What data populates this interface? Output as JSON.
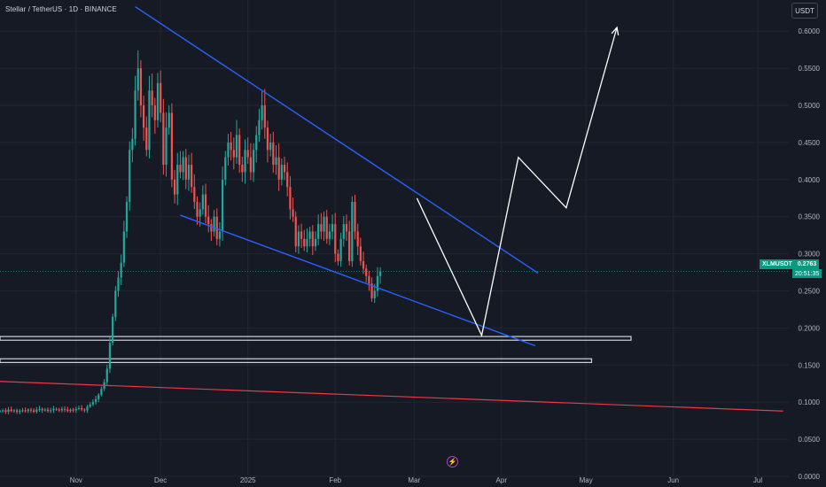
{
  "header": {
    "title": "Stellar / TetherUS · 1D · BINANCE",
    "currency_button": "USDT"
  },
  "price_badge": {
    "symbol": "XLMUSDT",
    "price": "0.2763",
    "countdown": "20:51:35"
  },
  "colors": {
    "background": "#161a25",
    "up": "#26a69a",
    "down": "#ef5350",
    "trendline": "#2962ff",
    "zone": "#d1d4dc",
    "support": "#f23645",
    "projection": "#ffffff",
    "grid": "#232632",
    "axis_text": "#b2b5be",
    "current_price_line": "#089981"
  },
  "icons": {
    "flash": "lightning-icon"
  },
  "chart_data": {
    "type": "candlestick",
    "title": "Stellar / TetherUS · 1D · BINANCE",
    "y_axis": {
      "ticks": [
        "0.6000",
        "0.5500",
        "0.5000",
        "0.4500",
        "0.4000",
        "0.3500",
        "0.3000",
        "0.2500",
        "0.2000",
        "0.1500",
        "0.1000",
        "0.0500",
        "0.0000"
      ],
      "ylim": [
        0,
        0.6324
      ]
    },
    "x_axis": {
      "ticks": [
        "Nov",
        "Dec",
        "2025",
        "Feb",
        "Mar",
        "Apr",
        "May",
        "Jun",
        "Jul"
      ],
      "tick_dates": [
        "2024-11-01",
        "2024-12-01",
        "2025-01-01",
        "2025-02-01",
        "2025-03-01",
        "2025-04-01",
        "2025-05-01",
        "2025-06-01",
        "2025-07-01"
      ],
      "xlim": [
        "2024-10-05",
        "2025-07-12"
      ]
    },
    "grid": true,
    "current_price": 0.2763,
    "candles": {
      "start_date": "2024-10-05",
      "closes": [
        0.088,
        0.089,
        0.087,
        0.09,
        0.088,
        0.089,
        0.087,
        0.088,
        0.089,
        0.088,
        0.09,
        0.089,
        0.087,
        0.09,
        0.091,
        0.089,
        0.09,
        0.088,
        0.089,
        0.091,
        0.09,
        0.089,
        0.091,
        0.09,
        0.088,
        0.09,
        0.089,
        0.091,
        0.092,
        0.09,
        0.089,
        0.094,
        0.097,
        0.1,
        0.104,
        0.11,
        0.118,
        0.127,
        0.145,
        0.18,
        0.215,
        0.25,
        0.268,
        0.288,
        0.33,
        0.37,
        0.44,
        0.455,
        0.52,
        0.55,
        0.5,
        0.47,
        0.44,
        0.52,
        0.5,
        0.48,
        0.53,
        0.49,
        0.42,
        0.47,
        0.49,
        0.4,
        0.38,
        0.42,
        0.41,
        0.43,
        0.4,
        0.42,
        0.39,
        0.37,
        0.35,
        0.36,
        0.38,
        0.35,
        0.34,
        0.33,
        0.35,
        0.32,
        0.33,
        0.4,
        0.43,
        0.45,
        0.44,
        0.43,
        0.46,
        0.42,
        0.41,
        0.44,
        0.43,
        0.41,
        0.44,
        0.46,
        0.48,
        0.5,
        0.47,
        0.44,
        0.45,
        0.42,
        0.43,
        0.4,
        0.42,
        0.41,
        0.39,
        0.36,
        0.35,
        0.31,
        0.33,
        0.32,
        0.31,
        0.32,
        0.33,
        0.31,
        0.32,
        0.34,
        0.33,
        0.35,
        0.32,
        0.33,
        0.34,
        0.3,
        0.29,
        0.32,
        0.34,
        0.33,
        0.29,
        0.37,
        0.33,
        0.31,
        0.29,
        0.28,
        0.27,
        0.26,
        0.24,
        0.25,
        0.27,
        0.2763
      ]
    },
    "drawings": {
      "falling_wedge_upper": [
        [
          "2024-11-22",
          0.633
        ],
        [
          "2025-04-14",
          0.274
        ]
      ],
      "falling_wedge_lower": [
        [
          "2024-12-08",
          0.352
        ],
        [
          "2025-04-13",
          0.176
        ]
      ],
      "support_line": [
        [
          "2024-10-05",
          0.128
        ],
        [
          "2025-07-10",
          0.088
        ]
      ],
      "zones": [
        {
          "from": "2024-10-05",
          "to": "2025-05-17",
          "low": 0.1835,
          "high": 0.1885
        },
        {
          "from": "2024-10-05",
          "to": "2025-05-03",
          "low": 0.1535,
          "high": 0.1585
        }
      ],
      "projection_path": [
        [
          "2025-03-02",
          0.375
        ],
        [
          "2025-03-25",
          0.19
        ],
        [
          "2025-04-07",
          0.43
        ],
        [
          "2025-04-24",
          0.362
        ],
        [
          "2025-05-12",
          0.605
        ]
      ]
    }
  }
}
